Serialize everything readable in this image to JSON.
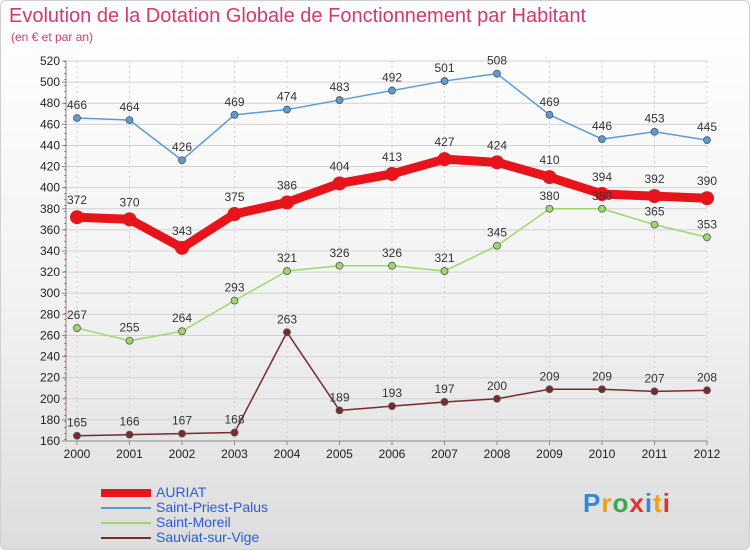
{
  "header": {
    "title": "Evolution de la Dotation Globale de Fonctionnement par Habitant",
    "subtitle": "(en € et par an)"
  },
  "logo": {
    "text": "Proxiti",
    "colors": [
      "#2e8ad6",
      "#e8a317",
      "#3aa84e",
      "#e0332f",
      "#2e8ad6",
      "#e8a317",
      "#e0332f"
    ]
  },
  "chart_data": {
    "type": "line",
    "title": "Evolution de la Dotation Globale de Fonctionnement par Habitant",
    "ylabel": "(en € et par an)",
    "xlabel": "",
    "categories": [
      "2000",
      "2001",
      "2002",
      "2003",
      "2004",
      "2005",
      "2006",
      "2007",
      "2008",
      "2009",
      "2010",
      "2011",
      "2012"
    ],
    "ylim": [
      160,
      520
    ],
    "ytick_step": 20,
    "grid": true,
    "legend_position": "bottom-left",
    "series": [
      {
        "name": "AURIAT",
        "color": "#e8141b",
        "emphasis": true,
        "values": [
          372,
          370,
          343,
          375,
          386,
          404,
          413,
          427,
          424,
          410,
          394,
          392,
          390
        ]
      },
      {
        "name": "Saint-Priest-Palus",
        "color": "#5a9bd5",
        "emphasis": false,
        "values": [
          466,
          464,
          426,
          469,
          474,
          483,
          492,
          501,
          508,
          469,
          446,
          453,
          445
        ]
      },
      {
        "name": "Saint-Moreil",
        "color": "#9cd96b",
        "emphasis": false,
        "values": [
          267,
          255,
          264,
          293,
          321,
          326,
          326,
          321,
          345,
          380,
          380,
          365,
          353
        ]
      },
      {
        "name": "Sauviat-sur-Vige",
        "color": "#7a2a2a",
        "emphasis": false,
        "values": [
          165,
          166,
          167,
          168,
          263,
          189,
          193,
          197,
          200,
          209,
          209,
          207,
          208
        ]
      }
    ]
  }
}
